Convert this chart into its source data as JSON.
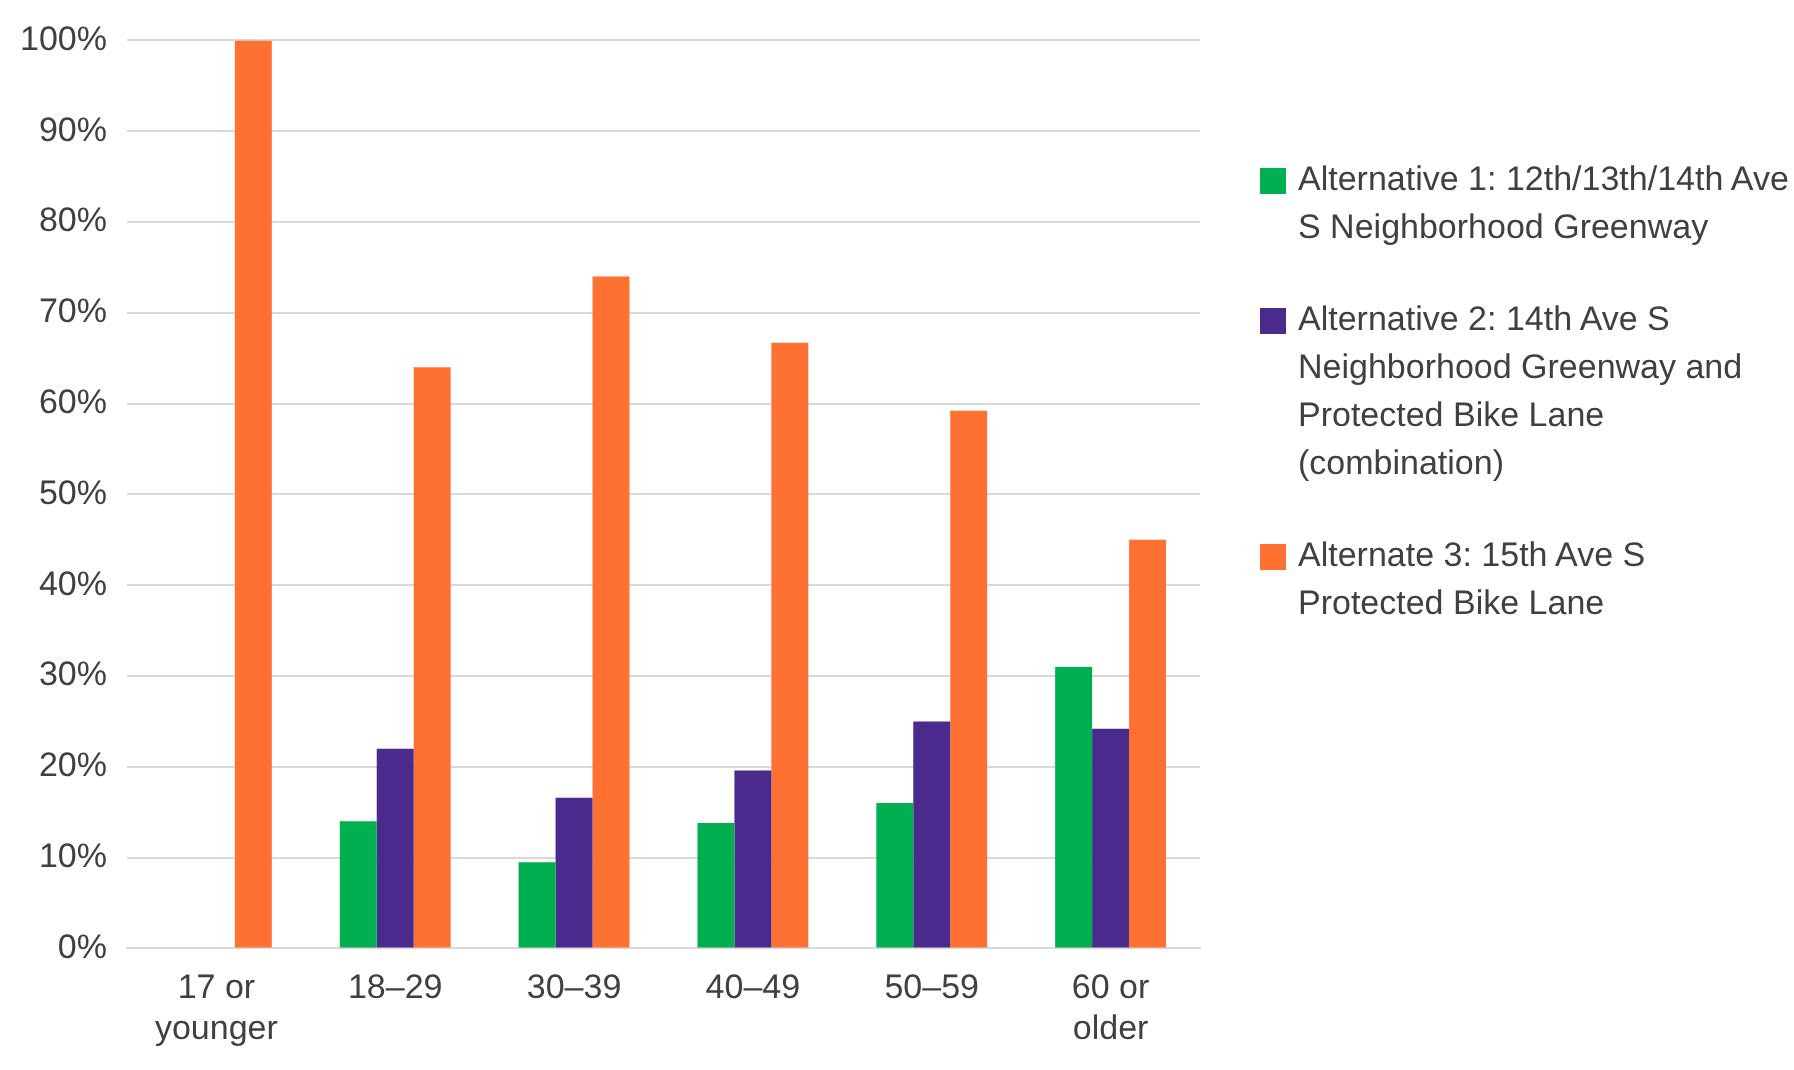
{
  "chart_data": {
    "type": "bar",
    "categories": [
      "17 or younger",
      "18–29",
      "30–39",
      "40–49",
      "50–59",
      "60 or older"
    ],
    "series": [
      {
        "name": "Alternative 1: 12th/13th/14th Ave S Neighborhood Greenway",
        "color": "#00b050",
        "values": [
          0,
          14,
          9.5,
          13.8,
          16,
          31
        ]
      },
      {
        "name": "Alternative 2: 14th Ave S Neighborhood Greenway and Protected Bike Lane (combination)",
        "color": "#4a2a8c",
        "values": [
          0,
          22,
          16.6,
          19.6,
          25,
          24.2
        ]
      },
      {
        "name": "Alternate 3: 15th Ave S Protected Bike Lane",
        "color": "#ff7133",
        "values": [
          100,
          64,
          74,
          66.7,
          59.2,
          45
        ]
      }
    ],
    "ylim": [
      0,
      100
    ],
    "yticks": [
      {
        "value": 0,
        "label": "0%"
      },
      {
        "value": 10,
        "label": "10%"
      },
      {
        "value": 20,
        "label": "20%"
      },
      {
        "value": 30,
        "label": "30%"
      },
      {
        "value": 40,
        "label": "40%"
      },
      {
        "value": 50,
        "label": "50%"
      },
      {
        "value": 60,
        "label": "60%"
      },
      {
        "value": 70,
        "label": "70%"
      },
      {
        "value": 80,
        "label": "80%"
      },
      {
        "value": 90,
        "label": "90%"
      },
      {
        "value": 100,
        "label": "100%"
      }
    ],
    "grid": "y",
    "legend": "right"
  }
}
